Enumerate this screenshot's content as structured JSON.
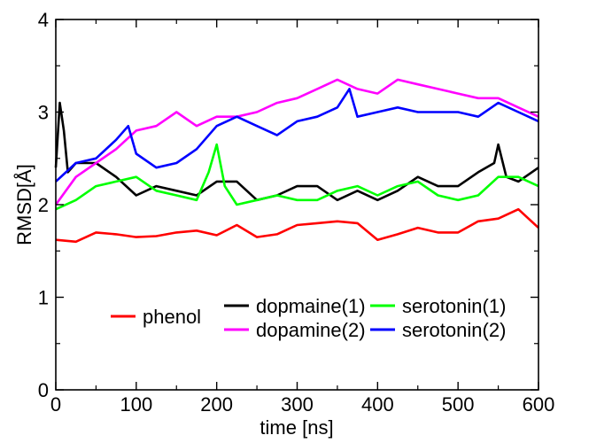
{
  "chart_data": {
    "type": "line",
    "xlabel": "time [ns]",
    "ylabel": "RMSD[Å]",
    "xlim": [
      0,
      600
    ],
    "ylim": [
      0,
      4
    ],
    "x_ticks": [
      0,
      100,
      200,
      300,
      400,
      500,
      600
    ],
    "y_ticks": [
      0,
      1,
      2,
      3,
      4
    ],
    "grid": false,
    "legend_position": "bottom-center",
    "series": [
      {
        "name": "phenol",
        "color": "#ff0000",
        "x": [
          0,
          25,
          50,
          75,
          100,
          125,
          150,
          175,
          200,
          225,
          250,
          275,
          300,
          325,
          350,
          375,
          400,
          425,
          450,
          475,
          500,
          525,
          550,
          575,
          600
        ],
        "y": [
          1.62,
          1.6,
          1.7,
          1.68,
          1.65,
          1.66,
          1.7,
          1.72,
          1.67,
          1.78,
          1.65,
          1.68,
          1.78,
          1.8,
          1.82,
          1.8,
          1.62,
          1.68,
          1.75,
          1.7,
          1.7,
          1.82,
          1.85,
          1.95,
          1.75
        ]
      },
      {
        "name": "dopmaine(1)",
        "color": "#000000",
        "x": [
          0,
          5,
          10,
          15,
          25,
          50,
          75,
          100,
          125,
          150,
          175,
          200,
          225,
          250,
          275,
          300,
          325,
          350,
          375,
          400,
          425,
          450,
          475,
          500,
          525,
          545,
          550,
          560,
          575,
          600
        ],
        "y": [
          2.4,
          3.1,
          2.8,
          2.35,
          2.45,
          2.45,
          2.3,
          2.1,
          2.2,
          2.15,
          2.1,
          2.25,
          2.25,
          2.05,
          2.1,
          2.2,
          2.2,
          2.05,
          2.15,
          2.05,
          2.15,
          2.3,
          2.2,
          2.2,
          2.35,
          2.45,
          2.65,
          2.3,
          2.25,
          2.4
        ]
      },
      {
        "name": "serotonin(1)",
        "color": "#00ff00",
        "x": [
          0,
          25,
          50,
          75,
          100,
          125,
          150,
          175,
          190,
          200,
          210,
          225,
          250,
          275,
          300,
          325,
          350,
          375,
          400,
          425,
          450,
          475,
          500,
          525,
          550,
          575,
          600
        ],
        "y": [
          1.95,
          2.05,
          2.2,
          2.25,
          2.3,
          2.15,
          2.1,
          2.05,
          2.35,
          2.65,
          2.2,
          2.0,
          2.05,
          2.1,
          2.05,
          2.05,
          2.15,
          2.2,
          2.1,
          2.2,
          2.25,
          2.1,
          2.05,
          2.1,
          2.3,
          2.3,
          2.2
        ]
      },
      {
        "name": "dopamine(2)",
        "color": "#ff00ff",
        "x": [
          0,
          25,
          50,
          75,
          100,
          125,
          150,
          175,
          200,
          225,
          250,
          275,
          300,
          325,
          350,
          375,
          400,
          425,
          450,
          475,
          500,
          525,
          550,
          575,
          600
        ],
        "y": [
          2.0,
          2.3,
          2.45,
          2.6,
          2.8,
          2.85,
          3.0,
          2.85,
          2.95,
          2.95,
          3.0,
          3.1,
          3.15,
          3.25,
          3.35,
          3.25,
          3.2,
          3.35,
          3.3,
          3.25,
          3.2,
          3.15,
          3.15,
          3.05,
          2.95
        ]
      },
      {
        "name": "serotonin(2)",
        "color": "#0000ff",
        "x": [
          0,
          25,
          50,
          75,
          90,
          100,
          125,
          150,
          175,
          200,
          225,
          250,
          275,
          300,
          325,
          350,
          365,
          375,
          400,
          425,
          450,
          475,
          500,
          525,
          550,
          575,
          600
        ],
        "y": [
          2.25,
          2.45,
          2.5,
          2.7,
          2.85,
          2.55,
          2.4,
          2.45,
          2.6,
          2.85,
          2.95,
          2.85,
          2.75,
          2.9,
          2.95,
          3.05,
          3.25,
          2.95,
          3.0,
          3.05,
          3.0,
          3.0,
          3.0,
          2.95,
          3.1,
          3.0,
          2.9
        ]
      }
    ]
  }
}
